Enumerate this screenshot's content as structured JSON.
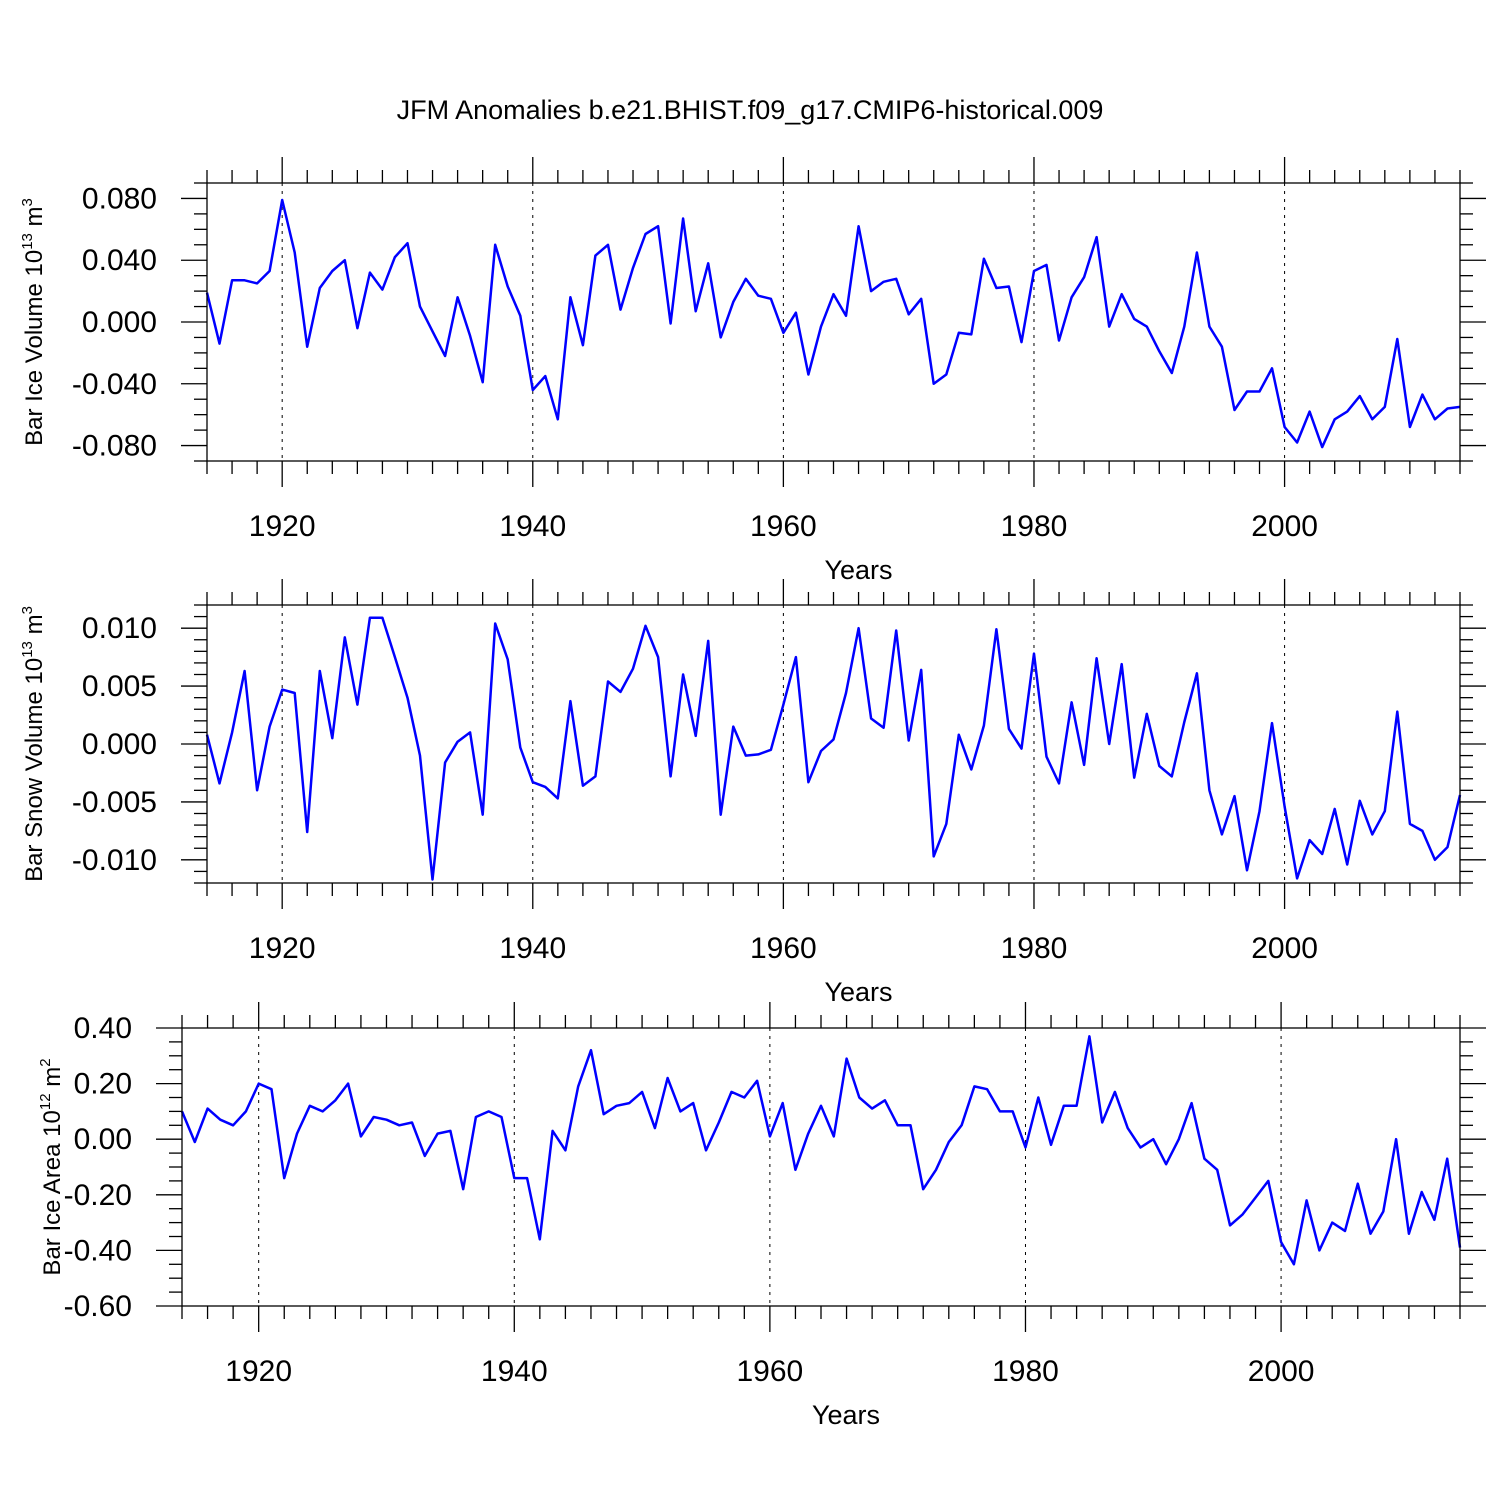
{
  "title": "JFM Anomalies b.e21.BHIST.f09_g17.CMIP6-historical.009",
  "line_color": "#0000ff",
  "chart_data": [
    {
      "type": "line",
      "ylabel": {
        "main": "Bar Ice Volume 10",
        "exp": "13",
        "unit": " m",
        "unit_exp": "3"
      },
      "xlabel": "Years",
      "xlim": [
        1914,
        2014
      ],
      "ylim": [
        -0.09,
        0.09
      ],
      "x_ticks": [
        1920,
        1940,
        1960,
        1980,
        2000
      ],
      "x_tick_labels": [
        "1920",
        "1940",
        "1960",
        "1980",
        "2000"
      ],
      "y_ticks": [
        0.08,
        0.04,
        0.0,
        -0.04,
        -0.08
      ],
      "y_tick_labels": [
        "0.080",
        "0.040",
        "0.000",
        "-0.040",
        "-0.080"
      ],
      "y_minor_step": 0.01,
      "grid": "dashed vertical lines at major x ticks",
      "series": [
        {
          "name": "Bar Ice Volume",
          "start_year": 1914,
          "values": [
            0.019,
            -0.014,
            0.027,
            0.027,
            0.025,
            0.033,
            0.079,
            0.045,
            -0.016,
            0.022,
            0.033,
            0.04,
            -0.004,
            0.032,
            0.021,
            0.042,
            0.051,
            0.01,
            -0.006,
            -0.022,
            0.016,
            -0.009,
            -0.039,
            0.05,
            0.023,
            0.004,
            -0.044,
            -0.035,
            -0.063,
            0.016,
            -0.015,
            0.043,
            0.05,
            0.008,
            0.035,
            0.057,
            0.062,
            -0.001,
            0.067,
            0.007,
            0.038,
            -0.01,
            0.013,
            0.028,
            0.017,
            0.015,
            -0.007,
            0.006,
            -0.034,
            -0.003,
            0.018,
            0.004,
            0.062,
            0.02,
            0.026,
            0.028,
            0.005,
            0.015,
            -0.04,
            -0.034,
            -0.007,
            -0.008,
            0.041,
            0.022,
            0.023,
            -0.013,
            0.033,
            0.037,
            -0.012,
            0.016,
            0.029,
            0.055,
            -0.003,
            0.018,
            0.002,
            -0.003,
            -0.019,
            -0.033,
            -0.003,
            0.045,
            -0.003,
            -0.016,
            -0.057,
            -0.045,
            -0.045,
            -0.03,
            -0.068,
            -0.078,
            -0.058,
            -0.081,
            -0.063,
            -0.058,
            -0.048,
            -0.063,
            -0.055,
            -0.011,
            -0.068,
            -0.047,
            -0.063,
            -0.056,
            -0.055
          ]
        }
      ]
    },
    {
      "type": "line",
      "ylabel": {
        "main": "Bar Snow Volume 10",
        "exp": "13",
        "unit": " m",
        "unit_exp": "3"
      },
      "xlabel": "Years",
      "xlim": [
        1914,
        2014
      ],
      "ylim": [
        -0.012,
        0.012
      ],
      "x_ticks": [
        1920,
        1940,
        1960,
        1980,
        2000
      ],
      "x_tick_labels": [
        "1920",
        "1940",
        "1960",
        "1980",
        "2000"
      ],
      "y_ticks": [
        0.01,
        0.005,
        0.0,
        -0.005,
        -0.01
      ],
      "y_tick_labels": [
        "0.010",
        "0.005",
        "0.000",
        "-0.005",
        "-0.010"
      ],
      "y_minor_step": 0.001,
      "grid": "dashed vertical lines at major x ticks",
      "series": [
        {
          "name": "Bar Snow Volume",
          "start_year": 1914,
          "values": [
            0.0008,
            -0.0034,
            0.001,
            0.0063,
            -0.004,
            0.0015,
            0.0047,
            0.0044,
            -0.0076,
            0.0063,
            0.0005,
            0.0092,
            0.0034,
            0.0109,
            0.0109,
            0.0075,
            0.004,
            -0.001,
            -0.0117,
            -0.0016,
            0.0002,
            0.001,
            -0.0061,
            0.0104,
            0.0073,
            -0.0003,
            -0.0033,
            -0.0037,
            -0.0047,
            0.0037,
            -0.0036,
            -0.0028,
            0.0054,
            0.0045,
            0.0065,
            0.0102,
            0.0075,
            -0.0028,
            0.006,
            0.0007,
            0.0089,
            -0.0061,
            0.0015,
            -0.001,
            -0.0009,
            -0.0005,
            0.0034,
            0.0075,
            -0.0033,
            -0.0006,
            0.0004,
            0.0044,
            0.01,
            0.0022,
            0.0014,
            0.0098,
            0.0003,
            0.0064,
            -0.0097,
            -0.0069,
            0.0008,
            -0.0022,
            0.0016,
            0.0099,
            0.0013,
            -0.0004,
            0.0078,
            -0.0011,
            -0.0034,
            0.0036,
            -0.0018,
            0.0074,
            0.0,
            0.0069,
            -0.0029,
            0.0026,
            -0.0019,
            -0.0028,
            0.0019,
            0.0061,
            -0.004,
            -0.0078,
            -0.0045,
            -0.0109,
            -0.0058,
            0.0018,
            -0.0054,
            -0.0116,
            -0.0083,
            -0.0095,
            -0.0056,
            -0.0104,
            -0.0049,
            -0.0078,
            -0.0058,
            0.0028,
            -0.0069,
            -0.0075,
            -0.01,
            -0.0089,
            -0.0044
          ]
        }
      ]
    },
    {
      "type": "line",
      "ylabel": {
        "main": "Bar Ice Area 10",
        "exp": "12",
        "unit": " m",
        "unit_exp": "2"
      },
      "xlabel": "Years",
      "xlim": [
        1914,
        2014
      ],
      "ylim": [
        -0.6,
        0.4
      ],
      "x_ticks": [
        1920,
        1940,
        1960,
        1980,
        2000
      ],
      "x_tick_labels": [
        "1920",
        "1940",
        "1960",
        "1980",
        "2000"
      ],
      "y_ticks": [
        0.4,
        0.2,
        0.0,
        -0.2,
        -0.4,
        -0.6
      ],
      "y_tick_labels": [
        "0.40",
        "0.20",
        "0.00",
        "-0.20",
        "-0.40",
        "-0.60"
      ],
      "y_minor_step": 0.05,
      "grid": "dashed vertical lines at major x ticks",
      "series": [
        {
          "name": "Bar Ice Area",
          "start_year": 1914,
          "values": [
            0.1,
            -0.01,
            0.11,
            0.07,
            0.05,
            0.1,
            0.2,
            0.18,
            -0.14,
            0.02,
            0.12,
            0.1,
            0.14,
            0.2,
            0.01,
            0.08,
            0.07,
            0.05,
            0.06,
            -0.06,
            0.02,
            0.03,
            -0.18,
            0.08,
            0.1,
            0.08,
            -0.14,
            -0.14,
            -0.36,
            0.03,
            -0.04,
            0.19,
            0.32,
            0.09,
            0.12,
            0.13,
            0.17,
            0.04,
            0.22,
            0.1,
            0.13,
            -0.04,
            0.06,
            0.17,
            0.15,
            0.21,
            0.01,
            0.13,
            -0.11,
            0.02,
            0.12,
            0.01,
            0.29,
            0.15,
            0.11,
            0.14,
            0.05,
            0.05,
            -0.18,
            -0.11,
            -0.01,
            0.05,
            0.19,
            0.18,
            0.1,
            0.1,
            -0.03,
            0.15,
            -0.02,
            0.12,
            0.12,
            0.37,
            0.06,
            0.17,
            0.04,
            -0.03,
            0.0,
            -0.09,
            0.0,
            0.13,
            -0.07,
            -0.11,
            -0.31,
            -0.27,
            -0.21,
            -0.15,
            -0.37,
            -0.45,
            -0.22,
            -0.4,
            -0.3,
            -0.33,
            -0.16,
            -0.34,
            -0.26,
            0.0,
            -0.34,
            -0.19,
            -0.29,
            -0.07,
            -0.39
          ]
        }
      ]
    }
  ]
}
